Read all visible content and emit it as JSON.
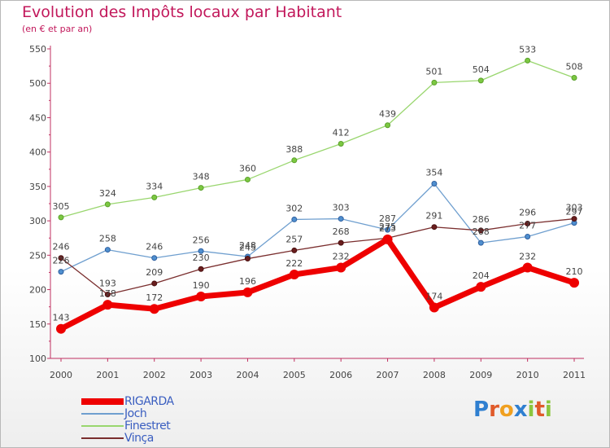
{
  "header": {
    "title": "Evolution des Impôts locaux par Habitant",
    "subtitle": "(en € et par an)"
  },
  "logo": {
    "text": "Proxiti"
  },
  "chart_data": {
    "type": "line",
    "x": [
      "2000",
      "2001",
      "2002",
      "2003",
      "2004",
      "2005",
      "2006",
      "2007",
      "2008",
      "2009",
      "2010",
      "2011"
    ],
    "ylim": [
      100,
      550
    ],
    "yticks": [
      100,
      150,
      200,
      250,
      300,
      350,
      400,
      450,
      500,
      550
    ],
    "grid": false,
    "legend_position": "bottom-left",
    "series": [
      {
        "name": "RIGARDA",
        "color": "#ee0000",
        "values": [
          143,
          178,
          172,
          190,
          196,
          222,
          232,
          273,
          174,
          204,
          232,
          210
        ]
      },
      {
        "name": "Joch",
        "color": "#6f9fcf",
        "values": [
          226,
          258,
          246,
          256,
          248,
          302,
          303,
          287,
          354,
          268,
          277,
          297
        ]
      },
      {
        "name": "Finestret",
        "color": "#99d66e",
        "values": [
          305,
          324,
          334,
          348,
          360,
          388,
          412,
          439,
          501,
          504,
          533,
          508
        ]
      },
      {
        "name": "Vinça",
        "color": "#7a2e2e",
        "values": [
          246,
          193,
          209,
          230,
          245,
          257,
          268,
          275,
          291,
          286,
          296,
          303
        ]
      }
    ]
  }
}
